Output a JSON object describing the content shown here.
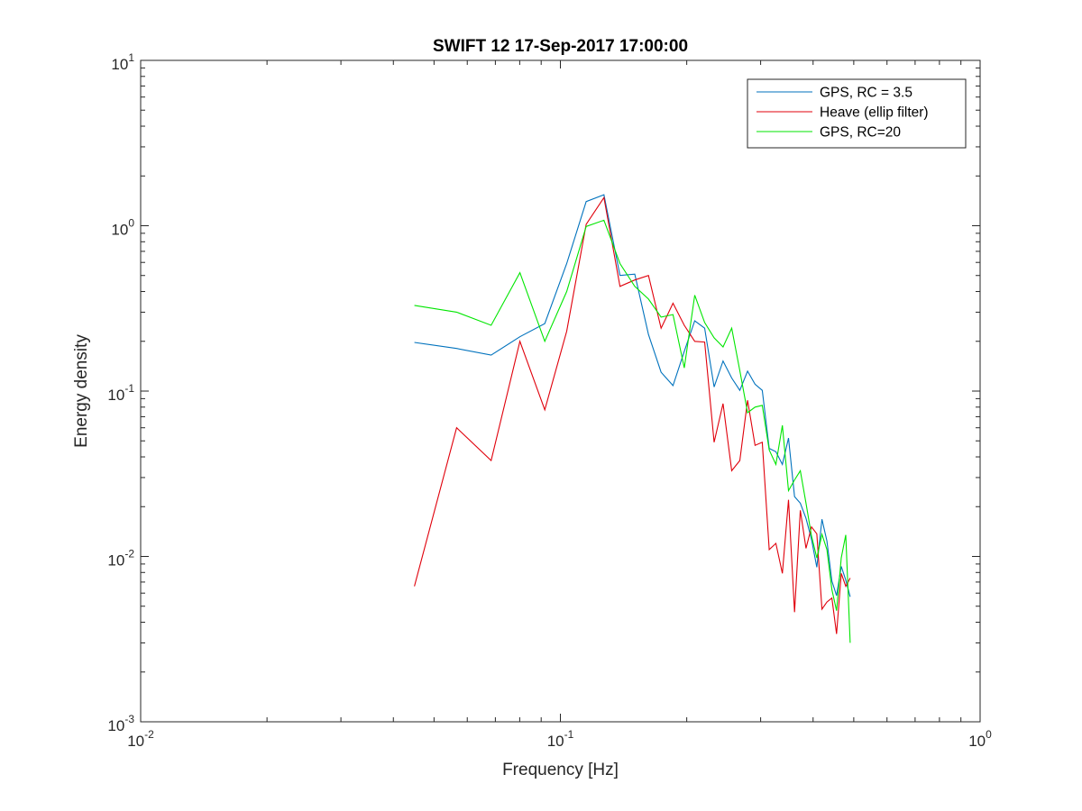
{
  "chart_data": {
    "type": "line",
    "title": "SWIFT 12 17-Sep-2017 17:00:00",
    "xlabel": "Frequency [Hz]",
    "ylabel": "Energy density",
    "xscale": "log",
    "yscale": "log",
    "xlim": [
      0.01,
      1
    ],
    "ylim": [
      0.001,
      10
    ],
    "x_ticks": [
      {
        "base": "10",
        "exp": "-2"
      },
      {
        "base": "10",
        "exp": "-1"
      },
      {
        "base": "10",
        "exp": "0"
      }
    ],
    "y_ticks": [
      {
        "base": "10",
        "exp": "-3"
      },
      {
        "base": "10",
        "exp": "-2"
      },
      {
        "base": "10",
        "exp": "-1"
      },
      {
        "base": "10",
        "exp": "0"
      },
      {
        "base": "10",
        "exp": "1"
      }
    ],
    "grid": false,
    "box": true,
    "legend_position": "top-right",
    "series": [
      {
        "name": "GPS, RC = 3.5",
        "color": "#0072bd",
        "x": [
          0.0449,
          0.0566,
          0.0684,
          0.0801,
          0.0918,
          0.1035,
          0.1152,
          0.127,
          0.1387,
          0.1504,
          0.1621,
          0.1738,
          0.1855,
          0.1973,
          0.209,
          0.2207,
          0.2324,
          0.2441,
          0.2559,
          0.2676,
          0.2793,
          0.291,
          0.3027,
          0.3145,
          0.3262,
          0.3379,
          0.3496,
          0.3613,
          0.373,
          0.3848,
          0.3965,
          0.4082,
          0.4199,
          0.4316,
          0.4434,
          0.4551,
          0.4668,
          0.4785,
          0.4902
        ],
        "y": [
          0.197,
          0.181,
          0.165,
          0.213,
          0.256,
          0.59,
          1.4,
          1.54,
          0.5,
          0.51,
          0.22,
          0.13,
          0.108,
          0.174,
          0.266,
          0.24,
          0.106,
          0.152,
          0.12,
          0.101,
          0.132,
          0.11,
          0.101,
          0.045,
          0.043,
          0.036,
          0.052,
          0.023,
          0.021,
          0.017,
          0.0127,
          0.0086,
          0.0168,
          0.0124,
          0.0071,
          0.0058,
          0.0087,
          0.0072,
          0.0057
        ]
      },
      {
        "name": "Heave (ellip filter)",
        "color": "#e0000b",
        "x": [
          0.0449,
          0.0566,
          0.0684,
          0.0801,
          0.0918,
          0.1035,
          0.1152,
          0.127,
          0.1387,
          0.1504,
          0.1621,
          0.1738,
          0.1855,
          0.1973,
          0.209,
          0.2207,
          0.2324,
          0.2441,
          0.2559,
          0.2676,
          0.2793,
          0.291,
          0.3027,
          0.3145,
          0.3262,
          0.3379,
          0.3496,
          0.3613,
          0.373,
          0.3848,
          0.3965,
          0.4082,
          0.4199,
          0.4316,
          0.4434,
          0.4551,
          0.4668,
          0.4785,
          0.4902
        ],
        "y": [
          0.0066,
          0.06,
          0.038,
          0.2,
          0.077,
          0.23,
          1.02,
          1.48,
          0.43,
          0.47,
          0.5,
          0.24,
          0.34,
          0.25,
          0.2,
          0.198,
          0.049,
          0.084,
          0.033,
          0.038,
          0.088,
          0.047,
          0.049,
          0.011,
          0.012,
          0.0079,
          0.022,
          0.0046,
          0.019,
          0.0112,
          0.0151,
          0.0137,
          0.0048,
          0.0053,
          0.0056,
          0.0034,
          0.0079,
          0.0066,
          0.0074
        ]
      },
      {
        "name": "GPS, RC=20",
        "color": "#00e600",
        "x": [
          0.0449,
          0.0566,
          0.0684,
          0.0801,
          0.0918,
          0.1035,
          0.1152,
          0.127,
          0.1387,
          0.1504,
          0.1621,
          0.1738,
          0.1855,
          0.1973,
          0.209,
          0.2207,
          0.2324,
          0.2441,
          0.2559,
          0.2676,
          0.2793,
          0.291,
          0.3027,
          0.3145,
          0.3262,
          0.3379,
          0.3496,
          0.3613,
          0.373,
          0.3848,
          0.3965,
          0.4082,
          0.4199,
          0.4316,
          0.4434,
          0.4551,
          0.4668,
          0.4785,
          0.4902
        ],
        "y": [
          0.33,
          0.3,
          0.25,
          0.52,
          0.2,
          0.4,
          0.99,
          1.08,
          0.59,
          0.43,
          0.36,
          0.28,
          0.29,
          0.138,
          0.38,
          0.26,
          0.21,
          0.185,
          0.24,
          0.133,
          0.074,
          0.08,
          0.082,
          0.044,
          0.036,
          0.062,
          0.025,
          0.029,
          0.033,
          0.021,
          0.0133,
          0.0098,
          0.0136,
          0.011,
          0.0063,
          0.0047,
          0.0098,
          0.0135,
          0.003
        ]
      }
    ]
  }
}
